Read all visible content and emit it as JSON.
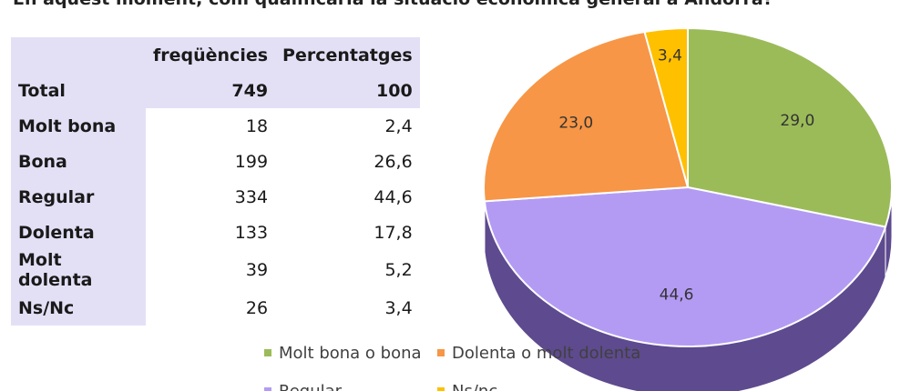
{
  "title": "En aquest moment, com qualificaria la situació econòmica general a Andorra?",
  "table": {
    "headers": [
      "",
      "freqüències",
      "Percentatges"
    ],
    "total": {
      "label": "Total",
      "freq": "749",
      "pct": "100"
    },
    "rows": [
      {
        "label": "Molt bona",
        "freq": "18",
        "pct": "2,4"
      },
      {
        "label": "Bona",
        "freq": "199",
        "pct": "26,6"
      },
      {
        "label": "Regular",
        "freq": "334",
        "pct": "44,6"
      },
      {
        "label": "Dolenta",
        "freq": "133",
        "pct": "17,8"
      },
      {
        "label": "Molt dolenta",
        "freq": "39",
        "pct": "5,2"
      },
      {
        "label": "Ns/Nc",
        "freq": "26",
        "pct": "3,4"
      }
    ]
  },
  "chart_data": {
    "type": "pie",
    "title": "",
    "slices": [
      {
        "name": "Molt bona o bona",
        "value": 29.0,
        "label": "29,0",
        "color": "#9bbb59"
      },
      {
        "name": "Regular",
        "value": 44.6,
        "label": "44,6",
        "color": "#b39bf4"
      },
      {
        "name": "Dolenta o molt dolenta",
        "value": 23.0,
        "label": "23,0",
        "color": "#f79646"
      },
      {
        "name": "Ns/nc",
        "value": 3.4,
        "label": "3,4",
        "color": "#ffc000"
      }
    ],
    "legend": {
      "placement": "bottom",
      "entries": [
        "Molt bona o bona",
        "Dolenta o molt dolenta",
        "Regular",
        "Ns/nc"
      ]
    },
    "style": "3d",
    "side_color": "#5e4a8e"
  }
}
